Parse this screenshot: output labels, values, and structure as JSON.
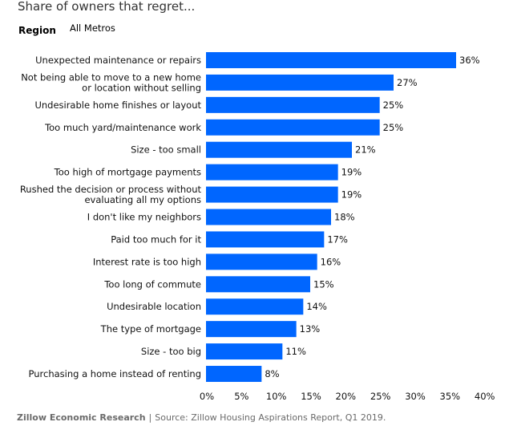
{
  "header": {
    "title": "Share of owners that regret..."
  },
  "filter": {
    "label": "Region",
    "value": "All Metros"
  },
  "chart_data": {
    "type": "bar",
    "orientation": "horizontal",
    "categories": [
      [
        "Unexpected maintenance or repairs"
      ],
      [
        "Not being able to move to a new home",
        "or location without selling"
      ],
      [
        "Undesirable home finishes or layout"
      ],
      [
        "Too much yard/maintenance work"
      ],
      [
        "Size - too small"
      ],
      [
        "Too high of mortgage payments"
      ],
      [
        "Rushed the decision or process without",
        "evaluating all my options"
      ],
      [
        "I don't like my neighbors"
      ],
      [
        "Paid too much for it"
      ],
      [
        "Interest rate is too high"
      ],
      [
        "Too long of commute"
      ],
      [
        "Undesirable location"
      ],
      [
        "The type of mortgage"
      ],
      [
        "Size - too big"
      ],
      [
        "Purchasing a home instead of renting"
      ]
    ],
    "values": [
      36,
      27,
      25,
      25,
      21,
      19,
      19,
      18,
      17,
      16,
      15,
      14,
      13,
      11,
      8
    ],
    "value_labels": [
      "36%",
      "27%",
      "25%",
      "25%",
      "21%",
      "19%",
      "19%",
      "18%",
      "17%",
      "16%",
      "15%",
      "14%",
      "13%",
      "11%",
      "8%"
    ],
    "xlim": [
      0,
      40
    ],
    "xticks": [
      0,
      5,
      10,
      15,
      20,
      25,
      30,
      35,
      40
    ],
    "xtick_labels": [
      "0%",
      "5%",
      "10%",
      "15%",
      "20%",
      "25%",
      "30%",
      "35%",
      "40%"
    ],
    "bar_color": "#0066ff",
    "grid": false
  },
  "footer": {
    "org": "Zillow Economic Research",
    "separator": "|",
    "source": "Source: Zillow Housing Aspirations Report, Q1 2019."
  }
}
